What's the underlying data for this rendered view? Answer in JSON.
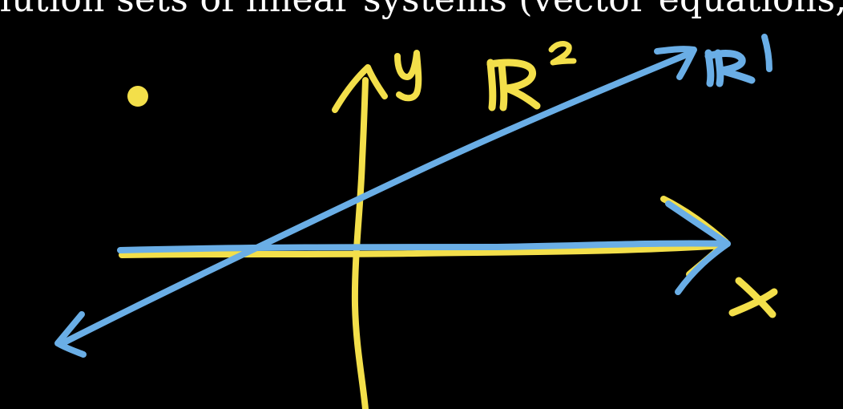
{
  "caption_partial": "lution sets of linear systems (vector equations, matri",
  "labels": {
    "y_axis": "y",
    "x_axis": "x",
    "plane": "ℝ²",
    "line": "ℝ¹"
  },
  "colors": {
    "background": "#000000",
    "caption_text": "#ffffff",
    "yellow": "#f3df4a",
    "blue": "#6aaee6"
  }
}
